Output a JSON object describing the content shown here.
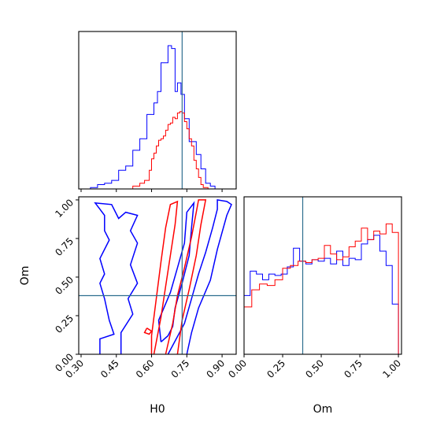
{
  "chart_data": {
    "type": "corner",
    "parameters": [
      "H0",
      "Om"
    ],
    "truths": {
      "H0": 0.73,
      "Om": 0.38
    },
    "ranges": {
      "H0": [
        0.29,
        0.96
      ],
      "Om": [
        0.0,
        1.02
      ]
    },
    "ticks": {
      "H0": [
        "0.30",
        "0.45",
        "0.60",
        "0.75",
        "0.90"
      ],
      "Om": [
        "0.00",
        "0.25",
        "0.50",
        "0.75",
        "1.00"
      ]
    },
    "colors": {
      "blue": "#0000ff",
      "red": "#ff0000",
      "truth": "#2f6f8f"
    },
    "h0_hist": {
      "blue": {
        "edges": [
          0.3,
          0.34,
          0.37,
          0.4,
          0.43,
          0.46,
          0.49,
          0.52,
          0.55,
          0.58,
          0.61,
          0.625,
          0.64,
          0.67,
          0.685,
          0.7,
          0.71,
          0.725,
          0.74,
          0.76,
          0.79,
          0.81,
          0.83,
          0.85,
          0.87
        ],
        "heights": [
          0.0,
          0.01,
          0.03,
          0.04,
          0.06,
          0.13,
          0.16,
          0.27,
          0.35,
          0.52,
          0.6,
          0.68,
          0.88,
          1.0,
          0.98,
          0.68,
          0.74,
          0.66,
          0.49,
          0.33,
          0.24,
          0.14,
          0.04,
          0.02
        ]
      },
      "red": {
        "edges": [
          0.52,
          0.55,
          0.57,
          0.59,
          0.6,
          0.61,
          0.62,
          0.63,
          0.64,
          0.65,
          0.66,
          0.67,
          0.68,
          0.69,
          0.7,
          0.71,
          0.72,
          0.73,
          0.74,
          0.75,
          0.76,
          0.77,
          0.78,
          0.79,
          0.8,
          0.81,
          0.82,
          0.84
        ],
        "heights": [
          0.02,
          0.04,
          0.06,
          0.13,
          0.21,
          0.25,
          0.3,
          0.34,
          0.35,
          0.37,
          0.41,
          0.45,
          0.46,
          0.5,
          0.49,
          0.53,
          0.54,
          0.53,
          0.47,
          0.42,
          0.35,
          0.3,
          0.2,
          0.14,
          0.08,
          0.03,
          0.01
        ]
      }
    },
    "om_hist": {
      "blue": {
        "edges": [
          0.0,
          0.04,
          0.08,
          0.12,
          0.16,
          0.2,
          0.24,
          0.28,
          0.32,
          0.36,
          0.4,
          0.44,
          0.48,
          0.52,
          0.56,
          0.6,
          0.64,
          0.68,
          0.72,
          0.76,
          0.8,
          0.84,
          0.88,
          0.92,
          0.96,
          1.0
        ],
        "heights": [
          0.41,
          0.58,
          0.56,
          0.52,
          0.56,
          0.55,
          0.56,
          0.61,
          0.74,
          0.65,
          0.63,
          0.66,
          0.65,
          0.67,
          0.63,
          0.72,
          0.62,
          0.67,
          0.66,
          0.77,
          0.8,
          0.83,
          0.72,
          0.62,
          0.35
        ]
      },
      "red": {
        "edges": [
          0.0,
          0.05,
          0.1,
          0.15,
          0.2,
          0.25,
          0.3,
          0.35,
          0.4,
          0.44,
          0.48,
          0.52,
          0.56,
          0.6,
          0.64,
          0.68,
          0.72,
          0.76,
          0.8,
          0.84,
          0.88,
          0.92,
          0.96,
          1.0
        ],
        "heights": [
          0.33,
          0.45,
          0.49,
          0.48,
          0.52,
          0.6,
          0.62,
          0.65,
          0.64,
          0.66,
          0.67,
          0.76,
          0.7,
          0.66,
          0.68,
          0.75,
          0.79,
          0.88,
          0.8,
          0.86,
          0.84,
          0.91,
          0.85
        ]
      }
    },
    "contours_2d": {
      "blue": [
        [
          [
            0.38,
            0.0
          ],
          [
            0.38,
            0.1
          ],
          [
            0.44,
            0.13
          ],
          [
            0.42,
            0.22
          ],
          [
            0.4,
            0.36
          ],
          [
            0.38,
            0.46
          ],
          [
            0.4,
            0.52
          ],
          [
            0.38,
            0.62
          ],
          [
            0.42,
            0.74
          ],
          [
            0.4,
            0.8
          ],
          [
            0.4,
            0.9
          ],
          [
            0.36,
            0.98
          ],
          [
            0.43,
            0.97
          ],
          [
            0.46,
            0.88
          ],
          [
            0.49,
            0.92
          ],
          [
            0.54,
            0.9
          ],
          [
            0.51,
            0.8
          ],
          [
            0.54,
            0.72
          ],
          [
            0.51,
            0.58
          ],
          [
            0.54,
            0.46
          ],
          [
            0.5,
            0.36
          ],
          [
            0.52,
            0.26
          ],
          [
            0.47,
            0.14
          ],
          [
            0.47,
            0.0
          ]
        ],
        [
          [
            0.67,
            0.0
          ],
          [
            0.74,
            0.2
          ],
          [
            0.77,
            0.36
          ],
          [
            0.8,
            0.52
          ],
          [
            0.83,
            0.66
          ],
          [
            0.86,
            0.82
          ],
          [
            0.88,
            0.94
          ],
          [
            0.88,
            1.0
          ],
          [
            0.92,
            0.99
          ],
          [
            0.94,
            0.97
          ],
          [
            0.92,
            0.9
          ],
          [
            0.88,
            0.68
          ],
          [
            0.85,
            0.48
          ],
          [
            0.8,
            0.3
          ],
          [
            0.77,
            0.14
          ],
          [
            0.75,
            0.0
          ]
        ],
        [
          [
            0.64,
            0.08
          ],
          [
            0.63,
            0.22
          ],
          [
            0.68,
            0.4
          ],
          [
            0.71,
            0.56
          ],
          [
            0.74,
            0.72
          ],
          [
            0.75,
            0.92
          ],
          [
            0.78,
            0.98
          ],
          [
            0.77,
            0.82
          ],
          [
            0.76,
            0.64
          ],
          [
            0.73,
            0.46
          ],
          [
            0.7,
            0.3
          ],
          [
            0.69,
            0.18
          ],
          [
            0.67,
            0.12
          ],
          [
            0.64,
            0.08
          ]
        ]
      ],
      "red": [
        [
          [
            0.6,
            0.0
          ],
          [
            0.6,
            0.12
          ],
          [
            0.62,
            0.36
          ],
          [
            0.64,
            0.6
          ],
          [
            0.66,
            0.82
          ],
          [
            0.68,
            0.97
          ],
          [
            0.71,
            0.99
          ],
          [
            0.7,
            0.84
          ],
          [
            0.68,
            0.64
          ],
          [
            0.66,
            0.44
          ],
          [
            0.64,
            0.24
          ],
          [
            0.62,
            0.08
          ],
          [
            0.61,
            0.0
          ]
        ],
        [
          [
            0.66,
            0.0
          ],
          [
            0.69,
            0.2
          ],
          [
            0.71,
            0.38
          ],
          [
            0.74,
            0.56
          ],
          [
            0.77,
            0.76
          ],
          [
            0.79,
            0.92
          ],
          [
            0.8,
            1.0
          ],
          [
            0.83,
            1.0
          ],
          [
            0.81,
            0.84
          ],
          [
            0.79,
            0.64
          ],
          [
            0.76,
            0.42
          ],
          [
            0.73,
            0.22
          ],
          [
            0.71,
            0.0
          ]
        ],
        [
          [
            0.58,
            0.17
          ],
          [
            0.57,
            0.14
          ],
          [
            0.59,
            0.13
          ],
          [
            0.6,
            0.15
          ],
          [
            0.58,
            0.17
          ]
        ]
      ]
    }
  }
}
